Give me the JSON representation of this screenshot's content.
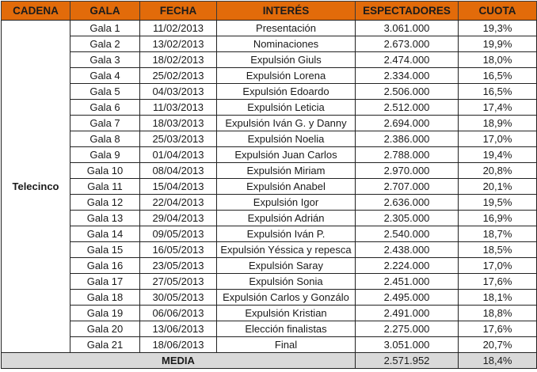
{
  "headers": {
    "cadena": "CADENA",
    "gala": "GALA",
    "fecha": "FECHA",
    "interes": "INTERÉS",
    "espectadores": "ESPECTADORES",
    "cuota": "CUOTA"
  },
  "colors": {
    "header_bg": "#e26b0a",
    "media_bg": "#d9d9d9",
    "border": "#222222"
  },
  "cadena": "Telecinco",
  "rows": [
    {
      "gala": "Gala 1",
      "fecha": "11/02/2013",
      "interes": "Presentación",
      "espectadores": "3.061.000",
      "cuota": "19,3%"
    },
    {
      "gala": "Gala 2",
      "fecha": "13/02/2013",
      "interes": "Nominaciones",
      "espectadores": "2.673.000",
      "cuota": "19,9%"
    },
    {
      "gala": "Gala 3",
      "fecha": "18/02/2013",
      "interes": "Expulsión Giuls",
      "espectadores": "2.474.000",
      "cuota": "18,0%"
    },
    {
      "gala": "Gala 4",
      "fecha": "25/02/2013",
      "interes": "Expulsión Lorena",
      "espectadores": "2.334.000",
      "cuota": "16,5%"
    },
    {
      "gala": "Gala 5",
      "fecha": "04/03/2013",
      "interes": "Expulsión Edoardo",
      "espectadores": "2.506.000",
      "cuota": "16,5%"
    },
    {
      "gala": "Gala 6",
      "fecha": "11/03/2013",
      "interes": "Expulsión Leticia",
      "espectadores": "2.512.000",
      "cuota": "17,4%"
    },
    {
      "gala": "Gala 7",
      "fecha": "18/03/2013",
      "interes": "Expulsión Iván G. y Danny",
      "espectadores": "2.694.000",
      "cuota": "18,9%"
    },
    {
      "gala": "Gala 8",
      "fecha": "25/03/2013",
      "interes": "Expulsión Noelia",
      "espectadores": "2.386.000",
      "cuota": "17,0%"
    },
    {
      "gala": "Gala 9",
      "fecha": "01/04/2013",
      "interes": "Expulsión Juan Carlos",
      "espectadores": "2.788.000",
      "cuota": "19,4%"
    },
    {
      "gala": "Gala 10",
      "fecha": "08/04/2013",
      "interes": "Expulsión Miriam",
      "espectadores": "2.970.000",
      "cuota": "20,8%"
    },
    {
      "gala": "Gala 11",
      "fecha": "15/04/2013",
      "interes": "Expulsión Anabel",
      "espectadores": "2.707.000",
      "cuota": "20,1%"
    },
    {
      "gala": "Gala 12",
      "fecha": "22/04/2013",
      "interes": "Expulsión Igor",
      "espectadores": "2.636.000",
      "cuota": "19,5%"
    },
    {
      "gala": "Gala 13",
      "fecha": "29/04/2013",
      "interes": "Expulsión Adrián",
      "espectadores": "2.305.000",
      "cuota": "16,9%"
    },
    {
      "gala": "Gala 14",
      "fecha": "09/05/2013",
      "interes": "Expulsión Iván P.",
      "espectadores": "2.540.000",
      "cuota": "18,7%"
    },
    {
      "gala": "Gala 15",
      "fecha": "16/05/2013",
      "interes": "Expulsión Yéssica y repesca",
      "espectadores": "2.438.000",
      "cuota": "18,5%"
    },
    {
      "gala": "Gala 16",
      "fecha": "23/05/2013",
      "interes": "Expulsión Saray",
      "espectadores": "2.224.000",
      "cuota": "17,0%"
    },
    {
      "gala": "Gala 17",
      "fecha": "27/05/2013",
      "interes": "Expulsión Sonia",
      "espectadores": "2.451.000",
      "cuota": "17,6%"
    },
    {
      "gala": "Gala 18",
      "fecha": "30/05/2013",
      "interes": "Expulsión Carlos y Gonzálo",
      "espectadores": "2.495.000",
      "cuota": "18,1%"
    },
    {
      "gala": "Gala 19",
      "fecha": "06/06/2013",
      "interes": "Expulsión Kristian",
      "espectadores": "2.491.000",
      "cuota": "18,8%"
    },
    {
      "gala": "Gala 20",
      "fecha": "13/06/2013",
      "interes": "Elección finalistas",
      "espectadores": "2.275.000",
      "cuota": "17,6%"
    },
    {
      "gala": "Gala 21",
      "fecha": "18/06/2013",
      "interes": "Final",
      "espectadores": "3.051.000",
      "cuota": "20,7%"
    }
  ],
  "media": {
    "label": "MEDIA",
    "espectadores": "2.571.952",
    "cuota": "18,4%"
  }
}
